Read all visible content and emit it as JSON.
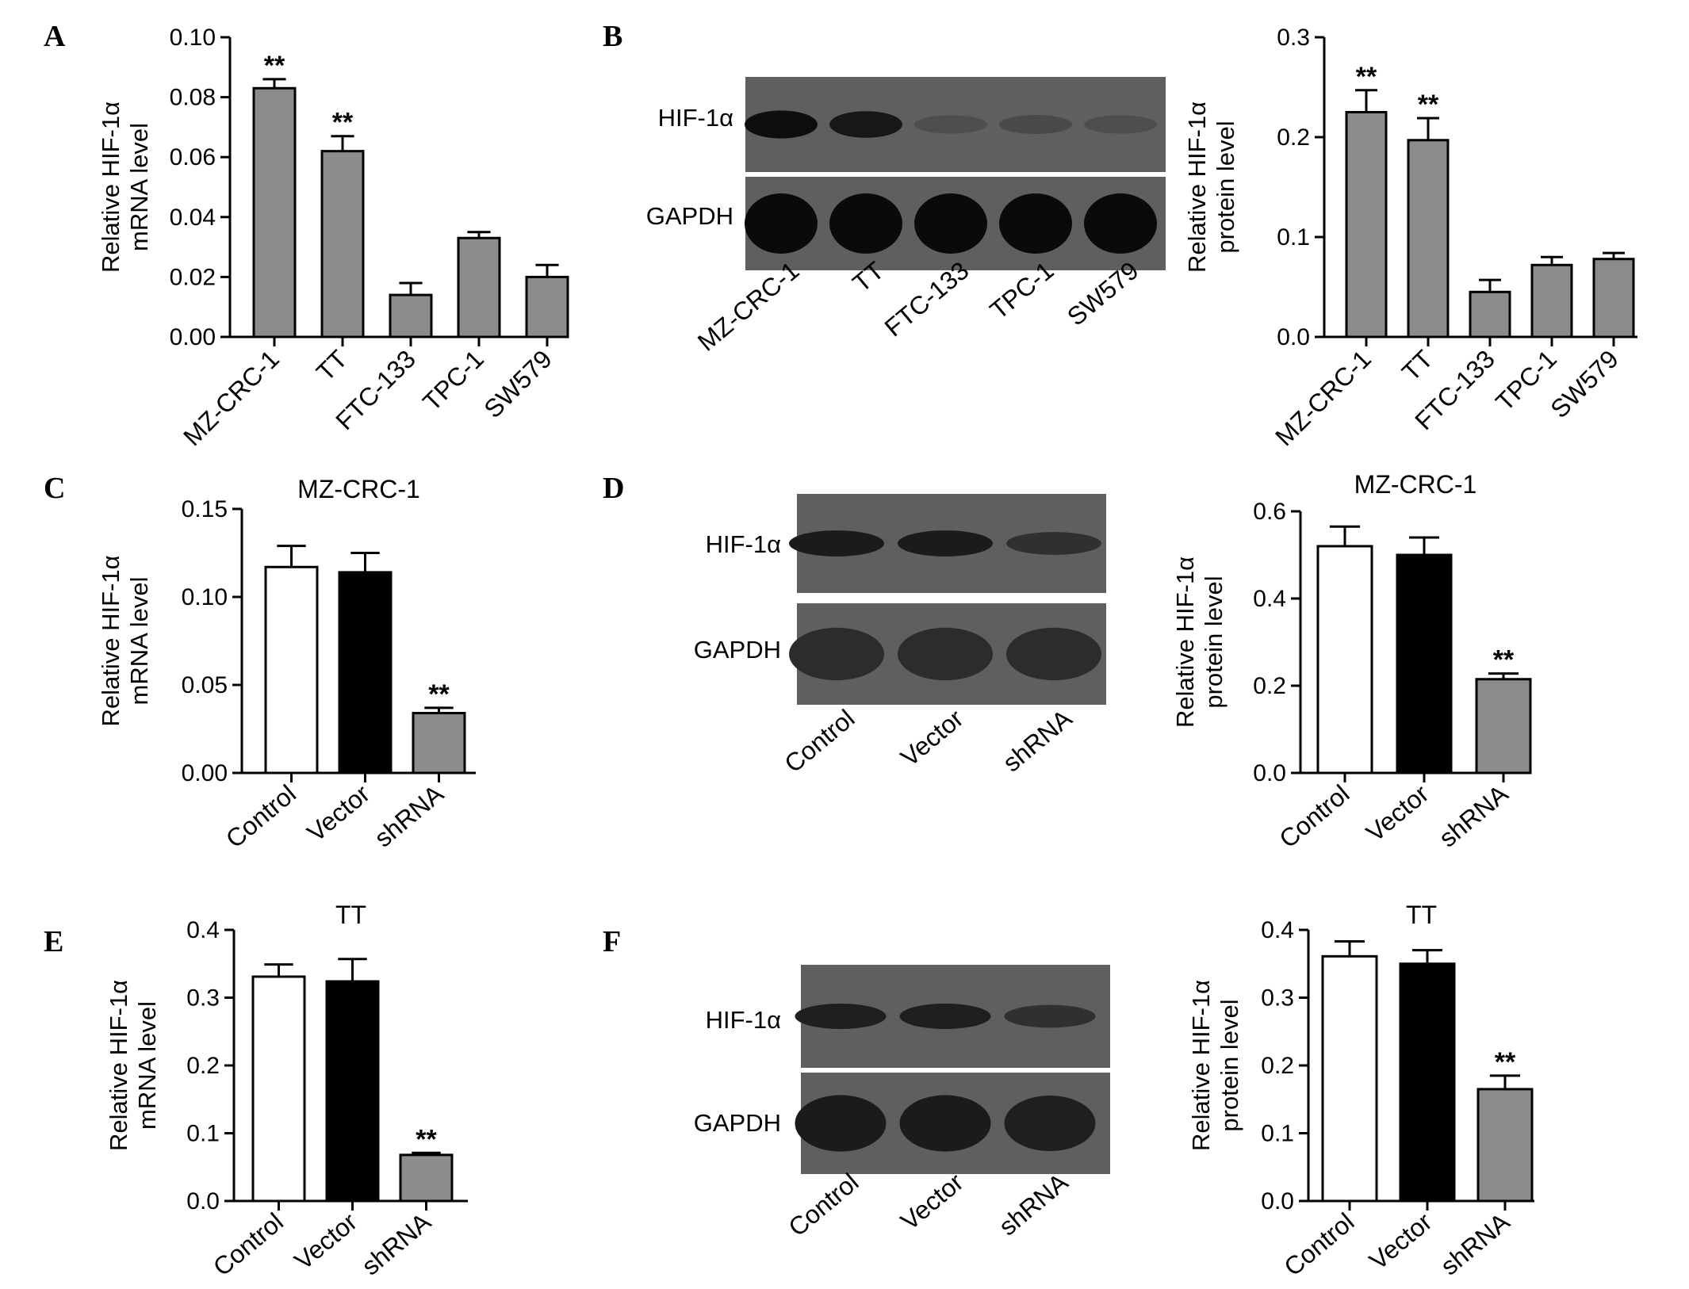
{
  "colors": {
    "gray_bar": "#8c8c8c",
    "black_bar": "#000000",
    "white_bar": "#ffffff",
    "blot_bg": "#5f5f5f",
    "blot_band": "#111111"
  },
  "chart_data": [
    {
      "panel": "A",
      "type": "bar",
      "title": "",
      "ylabel": [
        "Relative HIF-1α",
        "mRNA level"
      ],
      "ylim": [
        0,
        0.1
      ],
      "yticks": [
        "0.00",
        "0.02",
        "0.04",
        "0.06",
        "0.08",
        "0.10"
      ],
      "categories": [
        "MZ-CRC-1",
        "TT",
        "FTC-133",
        "TPC-1",
        "SW579"
      ],
      "values": [
        0.083,
        0.062,
        0.014,
        0.033,
        0.02
      ],
      "errors": [
        0.003,
        0.005,
        0.004,
        0.002,
        0.004
      ],
      "bar_colors": [
        "gray",
        "gray",
        "gray",
        "gray",
        "gray"
      ],
      "significance": [
        "**",
        "**",
        "",
        "",
        ""
      ]
    },
    {
      "panel": "B",
      "type": "bar",
      "title": "",
      "ylabel": [
        "Relative HIF-1α",
        "protein level"
      ],
      "ylim": [
        0,
        0.3
      ],
      "yticks": [
        "0.0",
        "0.1",
        "0.2",
        "0.3"
      ],
      "categories": [
        "MZ-CRC-1",
        "TT",
        "FTC-133",
        "TPC-1",
        "SW579"
      ],
      "values": [
        0.225,
        0.197,
        0.045,
        0.072,
        0.078
      ],
      "errors": [
        0.022,
        0.022,
        0.012,
        0.008,
        0.006
      ],
      "bar_colors": [
        "gray",
        "gray",
        "gray",
        "gray",
        "gray"
      ],
      "significance": [
        "**",
        "**",
        "",
        "",
        ""
      ]
    },
    {
      "panel": "C",
      "type": "bar",
      "title": "MZ-CRC-1",
      "ylabel": [
        "Relative HIF-1α",
        "mRNA level"
      ],
      "ylim": [
        0,
        0.15
      ],
      "yticks": [
        "0.00",
        "0.05",
        "0.10",
        "0.15"
      ],
      "categories": [
        "Control",
        "Vector",
        "shRNA"
      ],
      "values": [
        0.117,
        0.114,
        0.034
      ],
      "errors": [
        0.012,
        0.011,
        0.003
      ],
      "bar_colors": [
        "white",
        "black",
        "gray"
      ],
      "significance": [
        "",
        "",
        "**"
      ]
    },
    {
      "panel": "D",
      "type": "bar",
      "title": "MZ-CRC-1",
      "ylabel": [
        "Relative HIF-1α",
        "protein level"
      ],
      "ylim": [
        0,
        0.6
      ],
      "yticks": [
        "0.0",
        "0.2",
        "0.4",
        "0.6"
      ],
      "categories": [
        "Control",
        "Vector",
        "shRNA"
      ],
      "values": [
        0.52,
        0.5,
        0.215
      ],
      "errors": [
        0.045,
        0.04,
        0.013
      ],
      "bar_colors": [
        "white",
        "black",
        "gray"
      ],
      "significance": [
        "",
        "",
        "**"
      ]
    },
    {
      "panel": "E",
      "type": "bar",
      "title": "TT",
      "ylabel": [
        "Relative HIF-1α",
        "mRNA level"
      ],
      "ylim": [
        0,
        0.4
      ],
      "yticks": [
        "0.0",
        "0.1",
        "0.2",
        "0.3",
        "0.4"
      ],
      "categories": [
        "Control",
        "Vector",
        "shRNA"
      ],
      "values": [
        0.331,
        0.324,
        0.068
      ],
      "errors": [
        0.018,
        0.033,
        0.003
      ],
      "bar_colors": [
        "white",
        "black",
        "gray"
      ],
      "significance": [
        "",
        "",
        "**"
      ]
    },
    {
      "panel": "F",
      "type": "bar",
      "title": "TT",
      "ylabel": [
        "Relative HIF-1α",
        "protein level"
      ],
      "ylim": [
        0,
        0.4
      ],
      "yticks": [
        "0.0",
        "0.1",
        "0.2",
        "0.3",
        "0.4"
      ],
      "categories": [
        "Control",
        "Vector",
        "shRNA"
      ],
      "values": [
        0.361,
        0.35,
        0.165
      ],
      "errors": [
        0.022,
        0.02,
        0.02
      ],
      "bar_colors": [
        "white",
        "black",
        "gray"
      ],
      "significance": [
        "",
        "",
        "**"
      ]
    }
  ],
  "blots": [
    {
      "panel": "B",
      "rows": [
        "HIF-1α",
        "GAPDH"
      ],
      "lanes": [
        "MZ-CRC-1",
        "TT",
        "FTC-133",
        "TPC-1",
        "SW579"
      ],
      "hif_intensity": [
        0.95,
        0.85,
        0.2,
        0.25,
        0.2
      ],
      "gapdh_intensity": [
        1,
        1,
        1,
        1,
        1
      ]
    },
    {
      "panel": "D",
      "rows": [
        "HIF-1α",
        "GAPDH"
      ],
      "lanes": [
        "Control",
        "Vector",
        "shRNA"
      ],
      "hif_intensity": [
        0.8,
        0.8,
        0.55
      ],
      "gapdh_intensity": [
        0.6,
        0.6,
        0.6
      ]
    },
    {
      "panel": "F",
      "rows": [
        "HIF-1α",
        "GAPDH"
      ],
      "lanes": [
        "Control",
        "Vector",
        "shRNA"
      ],
      "hif_intensity": [
        0.75,
        0.75,
        0.55
      ],
      "gapdh_intensity": [
        0.8,
        0.8,
        0.75
      ]
    }
  ],
  "panel_letters": [
    "A",
    "B",
    "C",
    "D",
    "E",
    "F"
  ]
}
